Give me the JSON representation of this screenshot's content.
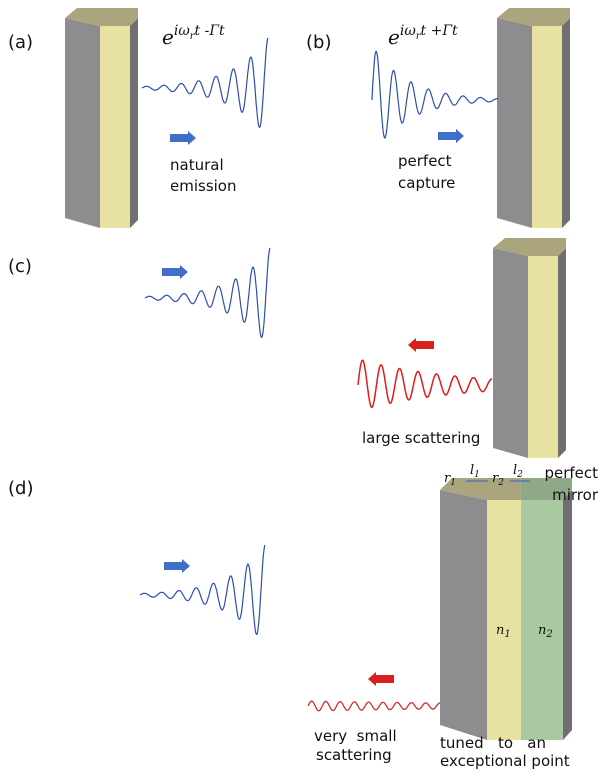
{
  "panels": [
    {
      "label": "(a)",
      "formula": {
        "base": "e",
        "exponent": "iω",
        "subscript": "r",
        "rest": "t -Γt"
      },
      "caption": [
        "natural",
        "emission"
      ]
    },
    {
      "label": "(b)",
      "formula": {
        "base": "e",
        "exponent": "iω",
        "subscript": "r",
        "rest": "t +Γt"
      },
      "caption": [
        "perfect",
        "capture"
      ]
    },
    {
      "label": "(c)",
      "caption": [
        "large scattering"
      ]
    },
    {
      "label": "(d)",
      "caption": [
        "very  small",
        "scattering"
      ],
      "structure": {
        "symbols": [
          {
            "symbol": "r",
            "index": "1"
          },
          {
            "symbol": "l",
            "index": "1"
          },
          {
            "symbol": "r",
            "index": "2"
          },
          {
            "symbol": "l",
            "index": "2"
          }
        ],
        "layers": [
          {
            "symbol": "n",
            "index": "1"
          },
          {
            "symbol": "n",
            "index": "2"
          }
        ],
        "mirror": [
          "perfect",
          "mirror"
        ],
        "note": [
          "tuned   to   an",
          "exceptional point"
        ]
      }
    }
  ]
}
